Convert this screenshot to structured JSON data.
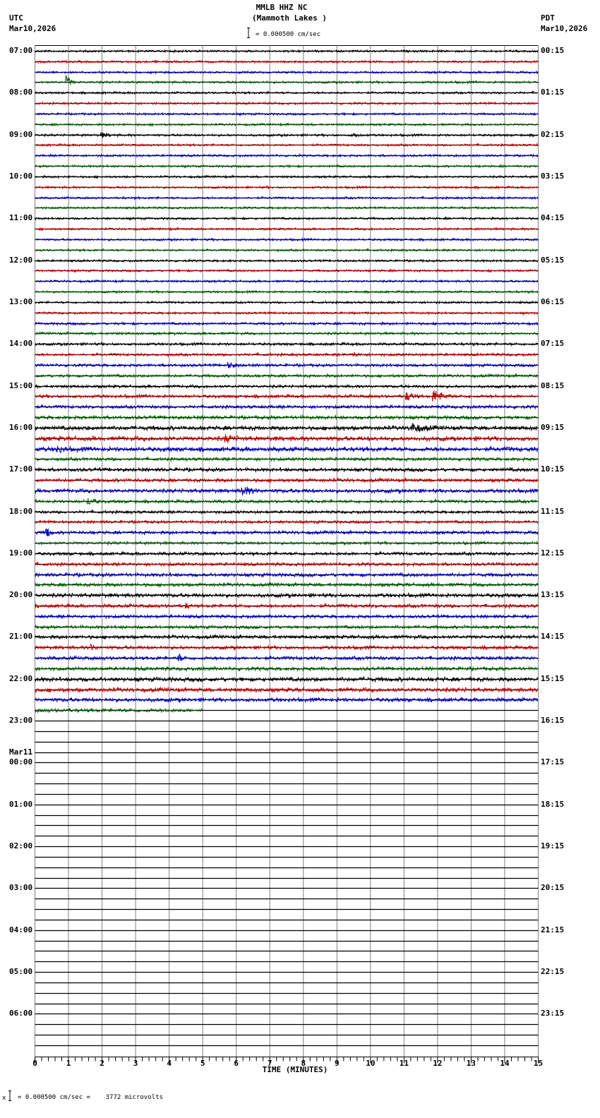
{
  "header": {
    "station": "MMLB HHZ NC",
    "location": "(Mammoth Lakes )",
    "left_tz": "UTC",
    "left_date": "Mar10,2026",
    "right_tz": "PDT",
    "right_date": "Mar10,2026",
    "scale_text": "= 0.000500 cm/sec"
  },
  "footer": {
    "scale_text": "= 0.000500 cm/sec =    3772 microvolts",
    "mark": "x"
  },
  "chart_data": {
    "type": "seismogram",
    "title": "MMLB HHZ NC (Mammoth Lakes )",
    "xlabel": "TIME (MINUTES)",
    "x_ticks": [
      "0",
      "1",
      "2",
      "3",
      "4",
      "5",
      "6",
      "7",
      "8",
      "9",
      "10",
      "11",
      "12",
      "13",
      "14",
      "15"
    ],
    "xlim": [
      0,
      15
    ],
    "scale": "0.000500 cm/sec = 3772 microvolts",
    "rows_per_hour": 4,
    "row_minutes": 15,
    "trace_colors": [
      "#000000",
      "#c80000",
      "#0000c8",
      "#006400"
    ],
    "left_labels": [
      {
        "row": 0,
        "text": "07:00"
      },
      {
        "row": 4,
        "text": "08:00"
      },
      {
        "row": 8,
        "text": "09:00"
      },
      {
        "row": 12,
        "text": "10:00"
      },
      {
        "row": 16,
        "text": "11:00"
      },
      {
        "row": 20,
        "text": "12:00"
      },
      {
        "row": 24,
        "text": "13:00"
      },
      {
        "row": 28,
        "text": "14:00"
      },
      {
        "row": 32,
        "text": "15:00"
      },
      {
        "row": 36,
        "text": "16:00"
      },
      {
        "row": 40,
        "text": "17:00"
      },
      {
        "row": 44,
        "text": "18:00"
      },
      {
        "row": 48,
        "text": "19:00"
      },
      {
        "row": 52,
        "text": "20:00"
      },
      {
        "row": 56,
        "text": "21:00"
      },
      {
        "row": 60,
        "text": "22:00"
      },
      {
        "row": 64,
        "text": "23:00"
      },
      {
        "row": 68,
        "text": "00:00",
        "date": "Mar11"
      },
      {
        "row": 72,
        "text": "01:00"
      },
      {
        "row": 76,
        "text": "02:00"
      },
      {
        "row": 80,
        "text": "03:00"
      },
      {
        "row": 84,
        "text": "04:00"
      },
      {
        "row": 88,
        "text": "05:00"
      },
      {
        "row": 92,
        "text": "06:00"
      }
    ],
    "right_labels": [
      {
        "row": 0,
        "text": "00:15"
      },
      {
        "row": 4,
        "text": "01:15"
      },
      {
        "row": 8,
        "text": "02:15"
      },
      {
        "row": 12,
        "text": "03:15"
      },
      {
        "row": 16,
        "text": "04:15"
      },
      {
        "row": 20,
        "text": "05:15"
      },
      {
        "row": 24,
        "text": "06:15"
      },
      {
        "row": 28,
        "text": "07:15"
      },
      {
        "row": 32,
        "text": "08:15"
      },
      {
        "row": 36,
        "text": "09:15"
      },
      {
        "row": 40,
        "text": "10:15"
      },
      {
        "row": 44,
        "text": "11:15"
      },
      {
        "row": 48,
        "text": "12:15"
      },
      {
        "row": 52,
        "text": "13:15"
      },
      {
        "row": 56,
        "text": "14:15"
      },
      {
        "row": 60,
        "text": "15:15"
      },
      {
        "row": 64,
        "text": "16:15"
      },
      {
        "row": 68,
        "text": "17:15"
      },
      {
        "row": 72,
        "text": "18:15"
      },
      {
        "row": 76,
        "text": "19:15"
      },
      {
        "row": 80,
        "text": "20:15"
      },
      {
        "row": 84,
        "text": "21:15"
      },
      {
        "row": 88,
        "text": "22:15"
      },
      {
        "row": 92,
        "text": "23:15"
      }
    ],
    "total_rows": 96,
    "data_rows": 64,
    "last_row_end_minute": 5,
    "row_noise_amplitude": [
      1.2,
      1.2,
      1.2,
      1.3,
      1.2,
      1.2,
      1.2,
      1.2,
      1.3,
      1.2,
      1.2,
      1.2,
      1.2,
      1.2,
      1.2,
      1.2,
      1.2,
      1.2,
      1.2,
      1.2,
      1.2,
      1.2,
      1.2,
      1.2,
      1.2,
      1.2,
      1.4,
      1.4,
      1.5,
      1.5,
      1.6,
      1.6,
      1.6,
      1.8,
      1.8,
      2.0,
      2.4,
      2.6,
      2.6,
      1.8,
      2.0,
      2.0,
      2.2,
      1.8,
      1.6,
      1.6,
      1.8,
      1.6,
      1.8,
      1.8,
      2.0,
      2.0,
      2.2,
      2.0,
      1.8,
      1.8,
      2.0,
      2.0,
      2.0,
      2.0,
      2.4,
      2.4,
      2.2,
      2.2
    ],
    "events": [
      {
        "row": 3,
        "minute": 0.95,
        "amplitude": 9,
        "duration": 0.25
      },
      {
        "row": 8,
        "minute": 2.0,
        "amplitude": 3,
        "duration": 0.4
      },
      {
        "row": 8,
        "minute": 9.5,
        "amplitude": 2.5,
        "duration": 0.3
      },
      {
        "row": 29,
        "minute": 9.5,
        "amplitude": 2.5,
        "duration": 0.3
      },
      {
        "row": 30,
        "minute": 5.8,
        "amplitude": 3,
        "duration": 0.4
      },
      {
        "row": 33,
        "minute": 11.1,
        "amplitude": 5,
        "duration": 0.4
      },
      {
        "row": 33,
        "minute": 11.9,
        "amplitude": 8,
        "duration": 0.6
      },
      {
        "row": 36,
        "minute": 11.2,
        "amplitude": 6,
        "duration": 0.8
      },
      {
        "row": 37,
        "minute": 5.7,
        "amplitude": 4,
        "duration": 0.5
      },
      {
        "row": 38,
        "minute": 0.7,
        "amplitude": 4,
        "duration": 0.3
      },
      {
        "row": 42,
        "minute": 6.2,
        "amplitude": 6,
        "duration": 0.5
      },
      {
        "row": 43,
        "minute": 1.6,
        "amplitude": 4,
        "duration": 0.4
      },
      {
        "row": 46,
        "minute": 0.35,
        "amplitude": 9,
        "duration": 0.2
      },
      {
        "row": 53,
        "minute": 4.5,
        "amplitude": 3,
        "duration": 0.2
      },
      {
        "row": 58,
        "minute": 4.3,
        "amplitude": 5,
        "duration": 0.2
      },
      {
        "row": 57,
        "minute": 1.7,
        "amplitude": 3,
        "duration": 0.2
      }
    ]
  }
}
